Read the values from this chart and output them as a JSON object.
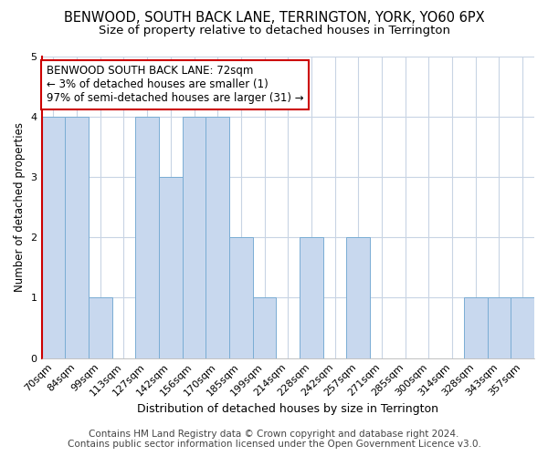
{
  "title": "BENWOOD, SOUTH BACK LANE, TERRINGTON, YORK, YO60 6PX",
  "subtitle": "Size of property relative to detached houses in Terrington",
  "xlabel": "Distribution of detached houses by size in Terrington",
  "ylabel": "Number of detached properties",
  "categories": [
    "70sqm",
    "84sqm",
    "99sqm",
    "113sqm",
    "127sqm",
    "142sqm",
    "156sqm",
    "170sqm",
    "185sqm",
    "199sqm",
    "214sqm",
    "228sqm",
    "242sqm",
    "257sqm",
    "271sqm",
    "285sqm",
    "300sqm",
    "314sqm",
    "328sqm",
    "343sqm",
    "357sqm"
  ],
  "values": [
    4,
    4,
    1,
    0,
    4,
    3,
    4,
    4,
    2,
    1,
    0,
    2,
    0,
    2,
    0,
    0,
    0,
    0,
    1,
    1,
    1
  ],
  "bar_color": "#c8d8ee",
  "bar_edge_color": "#7aadd4",
  "ylim": [
    0,
    5
  ],
  "yticks": [
    0,
    1,
    2,
    3,
    4,
    5
  ],
  "annotation_box_text": "BENWOOD SOUTH BACK LANE: 72sqm\n← 3% of detached houses are smaller (1)\n97% of semi-detached houses are larger (31) →",
  "annotation_box_color": "#ffffff",
  "annotation_box_edge_color": "#cc0000",
  "vline_color": "#cc0000",
  "footer_line1": "Contains HM Land Registry data © Crown copyright and database right 2024.",
  "footer_line2": "Contains public sector information licensed under the Open Government Licence v3.0.",
  "bg_color": "#ffffff",
  "plot_bg_color": "#ffffff",
  "grid_color": "#c8d4e4",
  "title_fontsize": 10.5,
  "subtitle_fontsize": 9.5,
  "xlabel_fontsize": 9,
  "ylabel_fontsize": 8.5,
  "tick_fontsize": 8,
  "annotation_fontsize": 8.5,
  "footer_fontsize": 7.5
}
